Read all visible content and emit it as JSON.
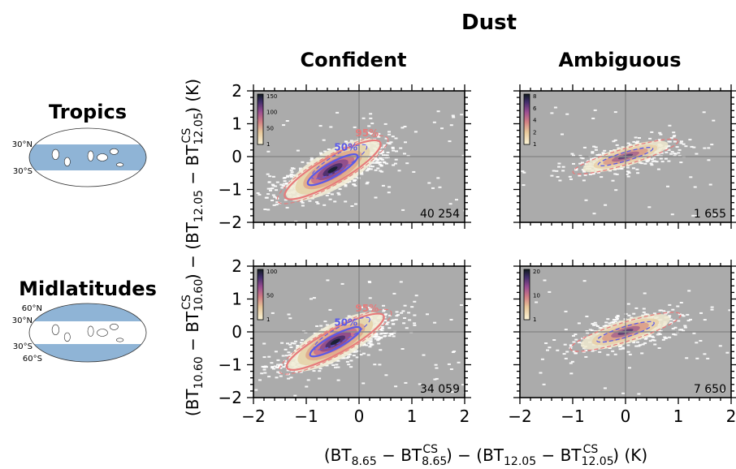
{
  "figure": {
    "suptitle": "Dust",
    "columns": [
      "Confident",
      "Ambiguous"
    ],
    "rows": [
      "Tropics",
      "Midlatitudes"
    ],
    "xlabel": "(BT₈.₆₅ − BT₈.₆₅^CS) − (BT₁₂.₀₅ − BT₁₂.₀₅^CS) (K)",
    "ylabel": "(BT₁₀.₆₀ − BT₁₀.₆₀^CS) − (BT₁₂.₀₅ − BT₁₂.₀₅^CS) (K)",
    "tropics_map": {
      "lat_labels": [
        "30°N",
        "30°S"
      ]
    },
    "midlat_map": {
      "lat_labels": [
        "60°N",
        "30°N",
        "30°S",
        "60°S"
      ]
    }
  },
  "colors": {
    "background": "#ababab",
    "contour95": "#e77b7b",
    "contour50": "#5a5ae8",
    "ocean": "#8fb4d6",
    "point": "#ffffff"
  },
  "chart_data": [
    {
      "type": "heatmap",
      "panel": "tropics-confident",
      "count_label": "40 254",
      "xlim": [
        -2,
        2
      ],
      "ylim": [
        -2,
        2
      ],
      "xticks": [
        "−2",
        "−1",
        "0",
        "1",
        "2"
      ],
      "yticks": [
        "−2",
        "−1",
        "0",
        "1",
        "2"
      ],
      "center": [
        -0.5,
        -0.4
      ],
      "spread": [
        0.4,
        0.32
      ],
      "rho": 0.72,
      "contour_labels": [
        "50%",
        "95%"
      ],
      "colorbar_ticks": [
        "1",
        "50",
        "100",
        "150"
      ]
    },
    {
      "type": "heatmap",
      "panel": "tropics-ambiguous",
      "count_label": "1 655",
      "xlim": [
        -2,
        2
      ],
      "ylim": [
        -2,
        2
      ],
      "xticks": [
        "−2",
        "−1",
        "0",
        "1",
        "2"
      ],
      "yticks": [
        "−2",
        "−1",
        "0",
        "1",
        "2"
      ],
      "center": [
        0,
        0
      ],
      "spread": [
        0.4,
        0.2
      ],
      "rho": 0.6,
      "contour_labels": [],
      "colorbar_ticks": [
        "1",
        "2",
        "4",
        "6",
        "8"
      ]
    },
    {
      "type": "heatmap",
      "panel": "midlatitudes-confident",
      "count_label": "34 059",
      "xlim": [
        -2,
        2
      ],
      "ylim": [
        -2,
        2
      ],
      "xticks": [
        "−2",
        "−1",
        "0",
        "1",
        "2"
      ],
      "yticks": [
        "−2",
        "−1",
        "0",
        "1",
        "2"
      ],
      "center": [
        -0.45,
        -0.3
      ],
      "spread": [
        0.4,
        0.3
      ],
      "rho": 0.72,
      "contour_labels": [
        "50%",
        "95%"
      ],
      "colorbar_ticks": [
        "1",
        "50",
        "100"
      ]
    },
    {
      "type": "heatmap",
      "panel": "midlatitudes-ambiguous",
      "count_label": "7 650",
      "xlim": [
        -2,
        2
      ],
      "ylim": [
        -2,
        2
      ],
      "xticks": [
        "−2",
        "−1",
        "0",
        "1",
        "2"
      ],
      "yticks": [
        "−2",
        "−1",
        "0",
        "1",
        "2"
      ],
      "center": [
        0,
        0
      ],
      "spread": [
        0.42,
        0.24
      ],
      "rho": 0.55,
      "contour_labels": [],
      "colorbar_ticks": [
        "1",
        "10",
        "20"
      ]
    }
  ]
}
